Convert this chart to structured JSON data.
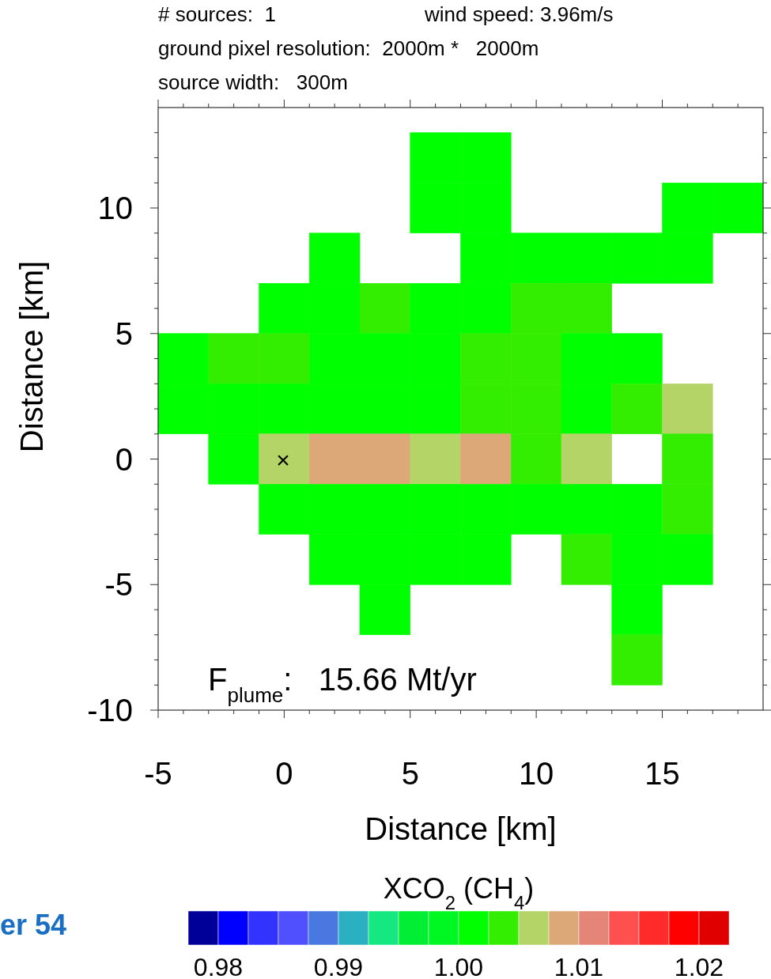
{
  "chart_data": {
    "type": "heatmap",
    "xlabel": "Distance [km]",
    "ylabel": "Distance [km]",
    "clabel": "XCO$_{2}$ (CH$_{4}$)",
    "x": [
      -4,
      -2,
      0,
      2,
      4,
      6,
      8,
      10,
      12,
      14,
      16,
      18
    ],
    "y": [
      12,
      10,
      8,
      6,
      4,
      2,
      0,
      -2,
      -4,
      -6,
      -8
    ],
    "cells": [
      [
        null,
        null,
        null,
        null,
        null,
        1.001,
        1.001,
        null,
        null,
        null,
        null,
        null
      ],
      [
        null,
        null,
        null,
        null,
        null,
        1.001,
        1.001,
        null,
        null,
        null,
        1.001,
        1.001
      ],
      [
        null,
        null,
        null,
        1.001,
        null,
        null,
        1.001,
        1.001,
        1.001,
        1.001,
        1.001,
        null
      ],
      [
        null,
        null,
        1.001,
        1.001,
        1.004,
        1.001,
        1.001,
        1.004,
        1.004,
        null,
        null,
        null
      ],
      [
        1.001,
        1.004,
        1.004,
        1.001,
        1.001,
        1.001,
        1.004,
        1.004,
        1.001,
        1.001,
        null,
        null
      ],
      [
        1.001,
        1.001,
        1.001,
        1.001,
        1.001,
        1.001,
        1.004,
        1.004,
        1.001,
        1.004,
        1.006,
        null
      ],
      [
        null,
        1.001,
        1.006,
        1.009,
        1.009,
        1.006,
        1.009,
        1.004,
        1.006,
        null,
        1.004,
        null
      ],
      [
        null,
        null,
        1.001,
        1.001,
        1.001,
        1.001,
        1.001,
        1.001,
        1.001,
        1.001,
        1.004,
        null
      ],
      [
        null,
        null,
        null,
        1.001,
        1.001,
        1.001,
        1.001,
        null,
        1.004,
        1.001,
        1.001,
        null
      ],
      [
        null,
        null,
        null,
        null,
        1.001,
        null,
        null,
        null,
        null,
        1.001,
        null,
        null
      ],
      [
        null,
        null,
        null,
        null,
        null,
        null,
        null,
        null,
        null,
        1.004,
        null,
        null
      ]
    ],
    "colors": [
      "#000099",
      "#0000ff",
      "#3333ff",
      "#5050ff",
      "#4878e0",
      "#2ab0c0",
      "#15e880",
      "#00ee33",
      "#00f822",
      "#00ff00",
      "#33ee00",
      "#b5d468",
      "#dca878",
      "#e58578",
      "#ff5050",
      "#ff2a2a",
      "#ff0000",
      "#e00000"
    ],
    "clim": [
      0.9775,
      1.0225
    ],
    "cticks": [
      0.98,
      0.99,
      {
        "value": 1,
        "label": "1.00"
      },
      1.01,
      1.02
    ],
    "xlim": [
      -5,
      19
    ],
    "ylim": [
      -10,
      14
    ],
    "xticks": [
      -5,
      {
        "value": -4,
        "label": null
      },
      {
        "value": -3,
        "label": null
      },
      {
        "value": -2,
        "label": null
      },
      {
        "value": -1,
        "label": null
      },
      0,
      {
        "value": 1,
        "label": null
      },
      {
        "value": 2,
        "label": null
      },
      {
        "value": 3,
        "label": null
      },
      {
        "value": 4,
        "label": null
      },
      5,
      {
        "value": 6,
        "label": null
      },
      {
        "value": 7,
        "label": null
      },
      {
        "value": 8,
        "label": null
      },
      {
        "value": 9,
        "label": null
      },
      10,
      {
        "value": 11,
        "label": null
      },
      {
        "value": 12,
        "label": null
      },
      {
        "value": 13,
        "label": null
      },
      {
        "value": 14,
        "label": null
      },
      15,
      {
        "value": 16,
        "label": null
      },
      {
        "value": 17,
        "label": null
      },
      {
        "value": 18,
        "label": null
      }
    ],
    "yticks": [
      -10,
      {
        "value": -9,
        "label": null
      },
      {
        "value": -8,
        "label": null
      },
      {
        "value": -7,
        "label": null
      },
      {
        "value": -6,
        "label": null
      },
      -5,
      {
        "value": -4,
        "label": null
      },
      {
        "value": -3,
        "label": null
      },
      {
        "value": -2,
        "label": null
      },
      {
        "value": -1,
        "label": null
      },
      0,
      {
        "value": 1,
        "label": null
      },
      {
        "value": 2,
        "label": null
      },
      {
        "value": 3,
        "label": null
      },
      {
        "value": 4,
        "label": null
      },
      5,
      {
        "value": 6,
        "label": null
      },
      {
        "value": 7,
        "label": null
      },
      {
        "value": 8,
        "label": null
      },
      {
        "value": 9,
        "label": null
      },
      10,
      {
        "value": 11,
        "label": null
      },
      {
        "value": 12,
        "label": null
      },
      {
        "value": 13,
        "label": null
      }
    ],
    "grid": false,
    "annotations": [
      "# sources:  1",
      "wind speed: 3.96m/s",
      "ground pixel resolution:  2000m *   2000m",
      "source width:   300m",
      "F$_{plume}$:   15.66 Mt/yr",
      "er 54",
      "×"
    ]
  }
}
